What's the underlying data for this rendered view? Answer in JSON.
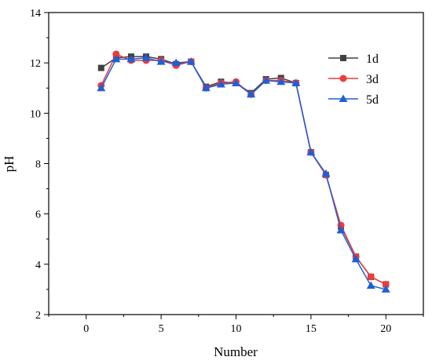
{
  "chart_data": {
    "type": "line",
    "title": "",
    "xlabel": "Number",
    "ylabel": "pH",
    "xlim": [
      -2.5,
      22.5
    ],
    "ylim": [
      2,
      14
    ],
    "x_ticks": [
      0,
      5,
      10,
      15,
      20
    ],
    "y_ticks": [
      2,
      4,
      6,
      8,
      10,
      12,
      14
    ],
    "x_tick_labels": [
      "0",
      "5",
      "10",
      "15",
      "20"
    ],
    "y_tick_labels": [
      "2",
      "4",
      "6",
      "8",
      "10",
      "12",
      "14"
    ],
    "legend_position": "top-right",
    "grid": false,
    "x": [
      1,
      2,
      3,
      4,
      5,
      6,
      7,
      8,
      9,
      10,
      11,
      12,
      13,
      14,
      15,
      16,
      17,
      18,
      19,
      20
    ],
    "series": [
      {
        "name": "1d",
        "color": "#404040",
        "marker": "square",
        "values": [
          11.8,
          12.2,
          12.25,
          12.25,
          12.15,
          11.95,
          12.05,
          11.05,
          11.25,
          11.2,
          10.8,
          11.35,
          11.4,
          11.2,
          8.45,
          7.55,
          5.5,
          4.3,
          3.5,
          3.2
        ]
      },
      {
        "name": "3d",
        "color": "#ee3b3b",
        "marker": "circle",
        "values": [
          11.1,
          12.35,
          12.1,
          12.1,
          12.1,
          11.9,
          12.05,
          11.0,
          11.2,
          11.25,
          10.75,
          11.3,
          11.3,
          11.2,
          8.45,
          7.55,
          5.55,
          4.3,
          3.5,
          3.2
        ]
      },
      {
        "name": "5d",
        "color": "#1f5fd6",
        "marker": "triangle",
        "values": [
          11.0,
          12.15,
          12.15,
          12.2,
          12.05,
          12.0,
          12.05,
          11.0,
          11.15,
          11.2,
          10.75,
          11.3,
          11.25,
          11.2,
          8.45,
          7.6,
          5.35,
          4.2,
          3.15,
          3.0
        ]
      }
    ]
  }
}
